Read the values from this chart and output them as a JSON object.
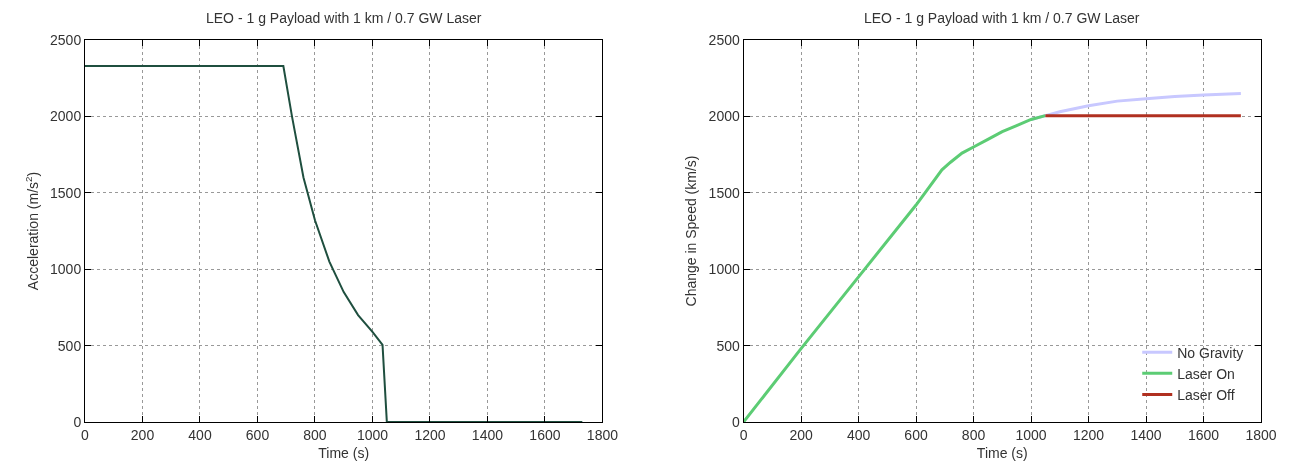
{
  "chart_data": [
    {
      "type": "line",
      "title": "LEO - 1 g Payload with 1 km / 0.7 GW Laser",
      "xlabel": "Time (s)",
      "ylabel": "Acceleration (m/s$^{2}$)",
      "xlim": [
        0,
        1800
      ],
      "xticks": [
        0,
        200,
        400,
        600,
        800,
        1000,
        1200,
        1400,
        1600,
        1800
      ],
      "ylim": [
        0,
        2500
      ],
      "yticks": [
        0,
        500,
        1000,
        1500,
        2000,
        2500
      ],
      "grid": true,
      "legend": false,
      "series": [
        {
          "color": "#1f4f3f",
          "x": [
            0,
            690,
            720,
            760,
            800,
            850,
            900,
            950,
            1000,
            1035,
            1050,
            1730
          ],
          "values": [
            2330,
            2330,
            2000,
            1600,
            1320,
            1050,
            850,
            700,
            590,
            505,
            0,
            0
          ]
        }
      ]
    },
    {
      "type": "line",
      "title": "LEO - 1 g Payload with 1 km / 0.7 GW Laser",
      "xlabel": "Time (s)",
      "ylabel": "Change in Speed (km/s)",
      "xlim": [
        0,
        1800
      ],
      "xticks": [
        0,
        200,
        400,
        600,
        800,
        1000,
        1200,
        1400,
        1600,
        1800
      ],
      "ylim": [
        0,
        2500
      ],
      "yticks": [
        0,
        500,
        1000,
        1500,
        2000,
        2500
      ],
      "grid": true,
      "legend": "bottom right",
      "series": [
        {
          "name": "No Gravity",
          "color": "#c8c8ff",
          "x": [
            1000,
            1050,
            1100,
            1200,
            1300,
            1400,
            1500,
            1600,
            1730
          ],
          "values": [
            1980,
            2005,
            2030,
            2070,
            2100,
            2115,
            2130,
            2140,
            2150
          ]
        },
        {
          "name": "Laser On",
          "color": "#5ccc74",
          "x": [
            0,
            200,
            400,
            600,
            690,
            720,
            760,
            800,
            850,
            900,
            950,
            1000,
            1050
          ],
          "values": [
            0,
            480,
            950,
            1420,
            1650,
            1700,
            1760,
            1800,
            1850,
            1900,
            1940,
            1980,
            2005
          ]
        },
        {
          "name": "Laser Off",
          "color": "#b03020",
          "x": [
            1050,
            1730
          ],
          "values": [
            2005,
            2005
          ]
        }
      ]
    }
  ]
}
